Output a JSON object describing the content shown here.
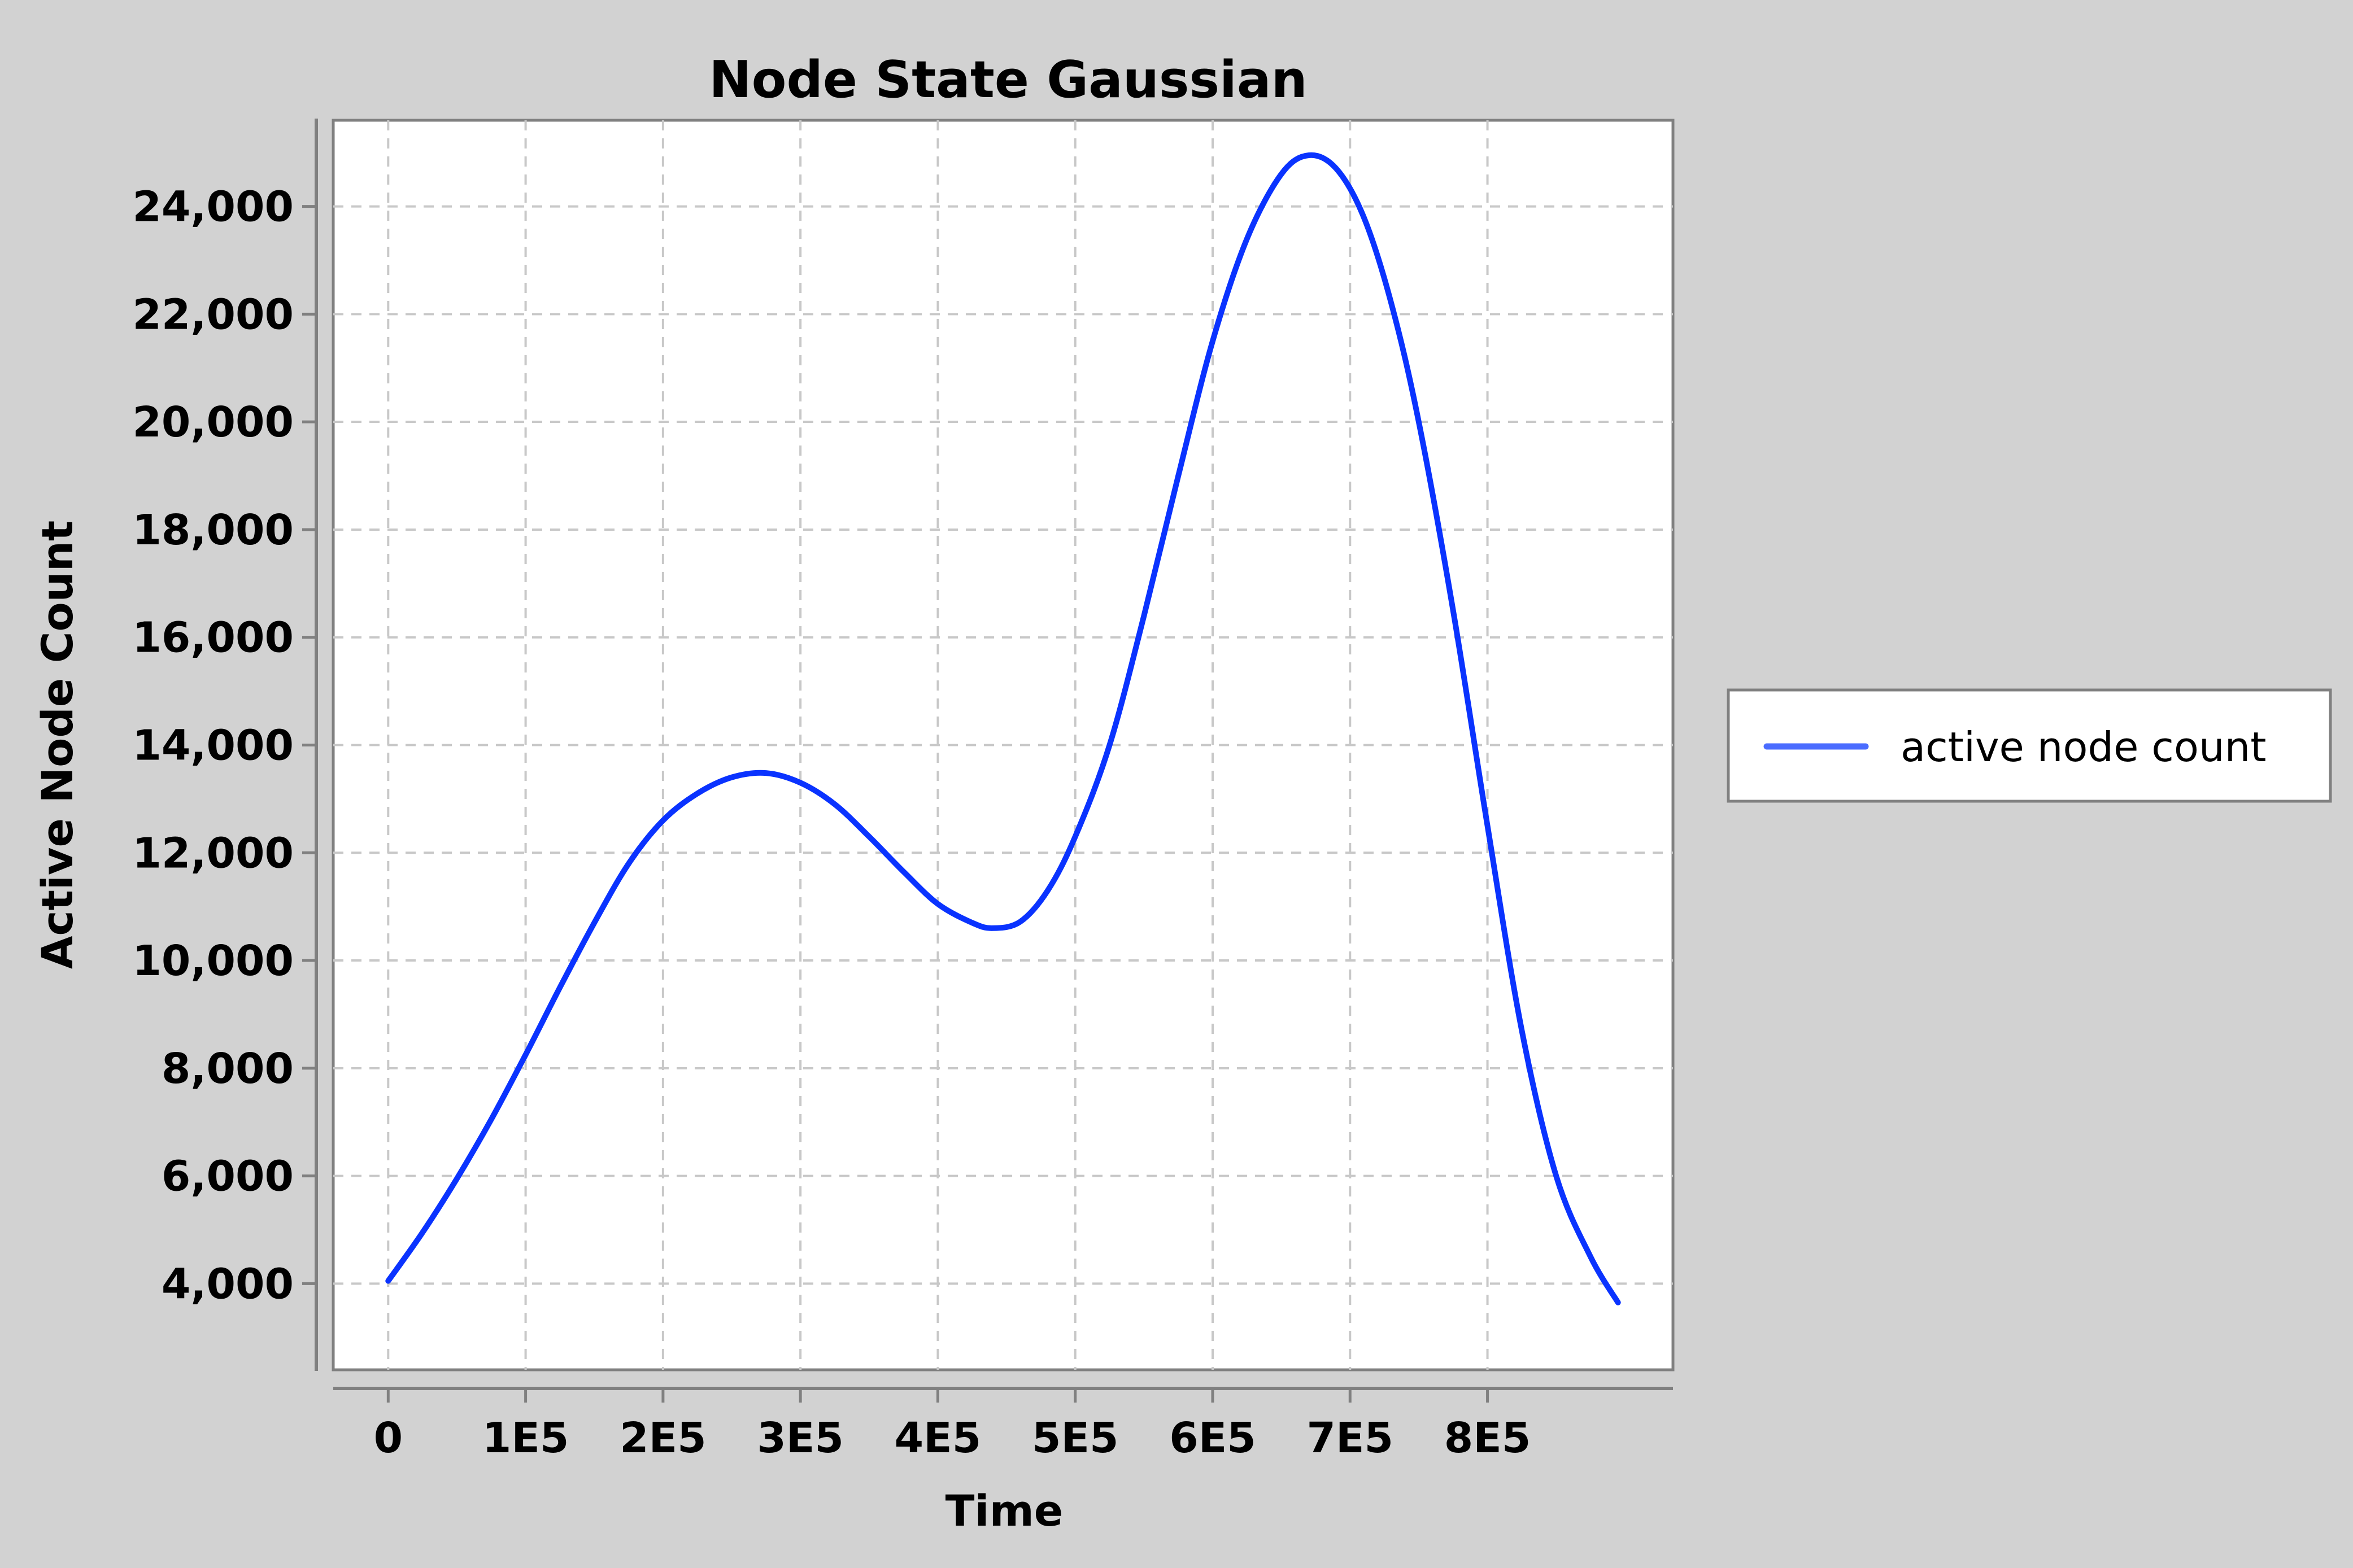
{
  "chart_data": {
    "type": "line",
    "title": "Node State Gaussian",
    "xlabel": "Time",
    "ylabel": "Active Node Count",
    "xlim": [
      -40000,
      935000
    ],
    "ylim": [
      2400,
      25600
    ],
    "x_ticks": [
      {
        "value": 0,
        "label": "0"
      },
      {
        "value": 100000,
        "label": "1E5"
      },
      {
        "value": 200000,
        "label": "2E5"
      },
      {
        "value": 300000,
        "label": "3E5"
      },
      {
        "value": 400000,
        "label": "4E5"
      },
      {
        "value": 500000,
        "label": "5E5"
      },
      {
        "value": 600000,
        "label": "6E5"
      },
      {
        "value": 700000,
        "label": "7E5"
      },
      {
        "value": 800000,
        "label": "8E5"
      }
    ],
    "y_ticks": [
      {
        "value": 4000,
        "label": "4,000"
      },
      {
        "value": 6000,
        "label": "6,000"
      },
      {
        "value": 8000,
        "label": "8,000"
      },
      {
        "value": 10000,
        "label": "10,000"
      },
      {
        "value": 12000,
        "label": "12,000"
      },
      {
        "value": 14000,
        "label": "14,000"
      },
      {
        "value": 16000,
        "label": "16,000"
      },
      {
        "value": 18000,
        "label": "18,000"
      },
      {
        "value": 20000,
        "label": "20,000"
      },
      {
        "value": 22000,
        "label": "22,000"
      },
      {
        "value": 24000,
        "label": "24,000"
      }
    ],
    "grid": true,
    "legend_position": "right",
    "series": [
      {
        "name": "active node count",
        "color": "#0a33ff",
        "legend_color": "#4a6cff",
        "x": [
          0,
          25000,
          50000,
          75000,
          100000,
          125000,
          150000,
          175000,
          200000,
          225000,
          250000,
          275000,
          300000,
          325000,
          350000,
          375000,
          400000,
          425000,
          440000,
          460000,
          480000,
          500000,
          525000,
          550000,
          575000,
          600000,
          625000,
          650000,
          670000,
          690000,
          710000,
          730000,
          750000,
          775000,
          800000,
          825000,
          850000,
          875000,
          895000
        ],
        "y": [
          4050,
          4950,
          5950,
          7050,
          8250,
          9500,
          10700,
          11800,
          12600,
          13100,
          13400,
          13480,
          13300,
          12900,
          12300,
          11650,
          11050,
          10700,
          10600,
          10720,
          11300,
          12300,
          14000,
          16400,
          19000,
          21500,
          23400,
          24600,
          24950,
          24700,
          23800,
          22200,
          20000,
          16500,
          12500,
          8700,
          6000,
          4500,
          3650
        ]
      }
    ]
  }
}
